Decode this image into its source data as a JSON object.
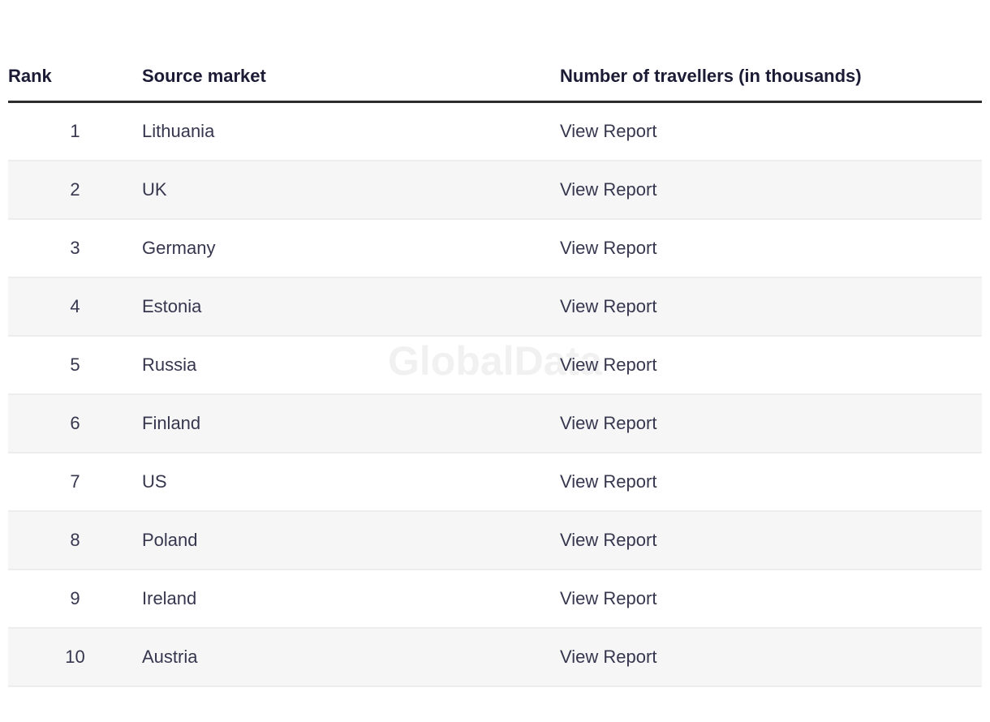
{
  "watermark": {
    "text": "GlobalData",
    "color": "#f1f1f1"
  },
  "table": {
    "columns": [
      {
        "id": "rank",
        "label": "Rank"
      },
      {
        "id": "market",
        "label": "Source market"
      },
      {
        "id": "travellers",
        "label": "Number of travellers (in thousands)"
      }
    ],
    "header_rule_color": "#2d2d2d",
    "stripe_color": "#f6f6f7",
    "rows": [
      {
        "rank": "1",
        "market": "Lithuania",
        "report_label": "View Report"
      },
      {
        "rank": "2",
        "market": "UK",
        "report_label": "View Report"
      },
      {
        "rank": "3",
        "market": "Germany",
        "report_label": "View Report"
      },
      {
        "rank": "4",
        "market": "Estonia",
        "report_label": "View Report"
      },
      {
        "rank": "5",
        "market": "Russia",
        "report_label": "View Report"
      },
      {
        "rank": "6",
        "market": "Finland",
        "report_label": "View Report"
      },
      {
        "rank": "7",
        "market": "US",
        "report_label": "View Report"
      },
      {
        "rank": "8",
        "market": "Poland",
        "report_label": "View Report"
      },
      {
        "rank": "9",
        "market": "Ireland",
        "report_label": "View Report"
      },
      {
        "rank": "10",
        "market": "Austria",
        "report_label": "View Report"
      }
    ]
  }
}
